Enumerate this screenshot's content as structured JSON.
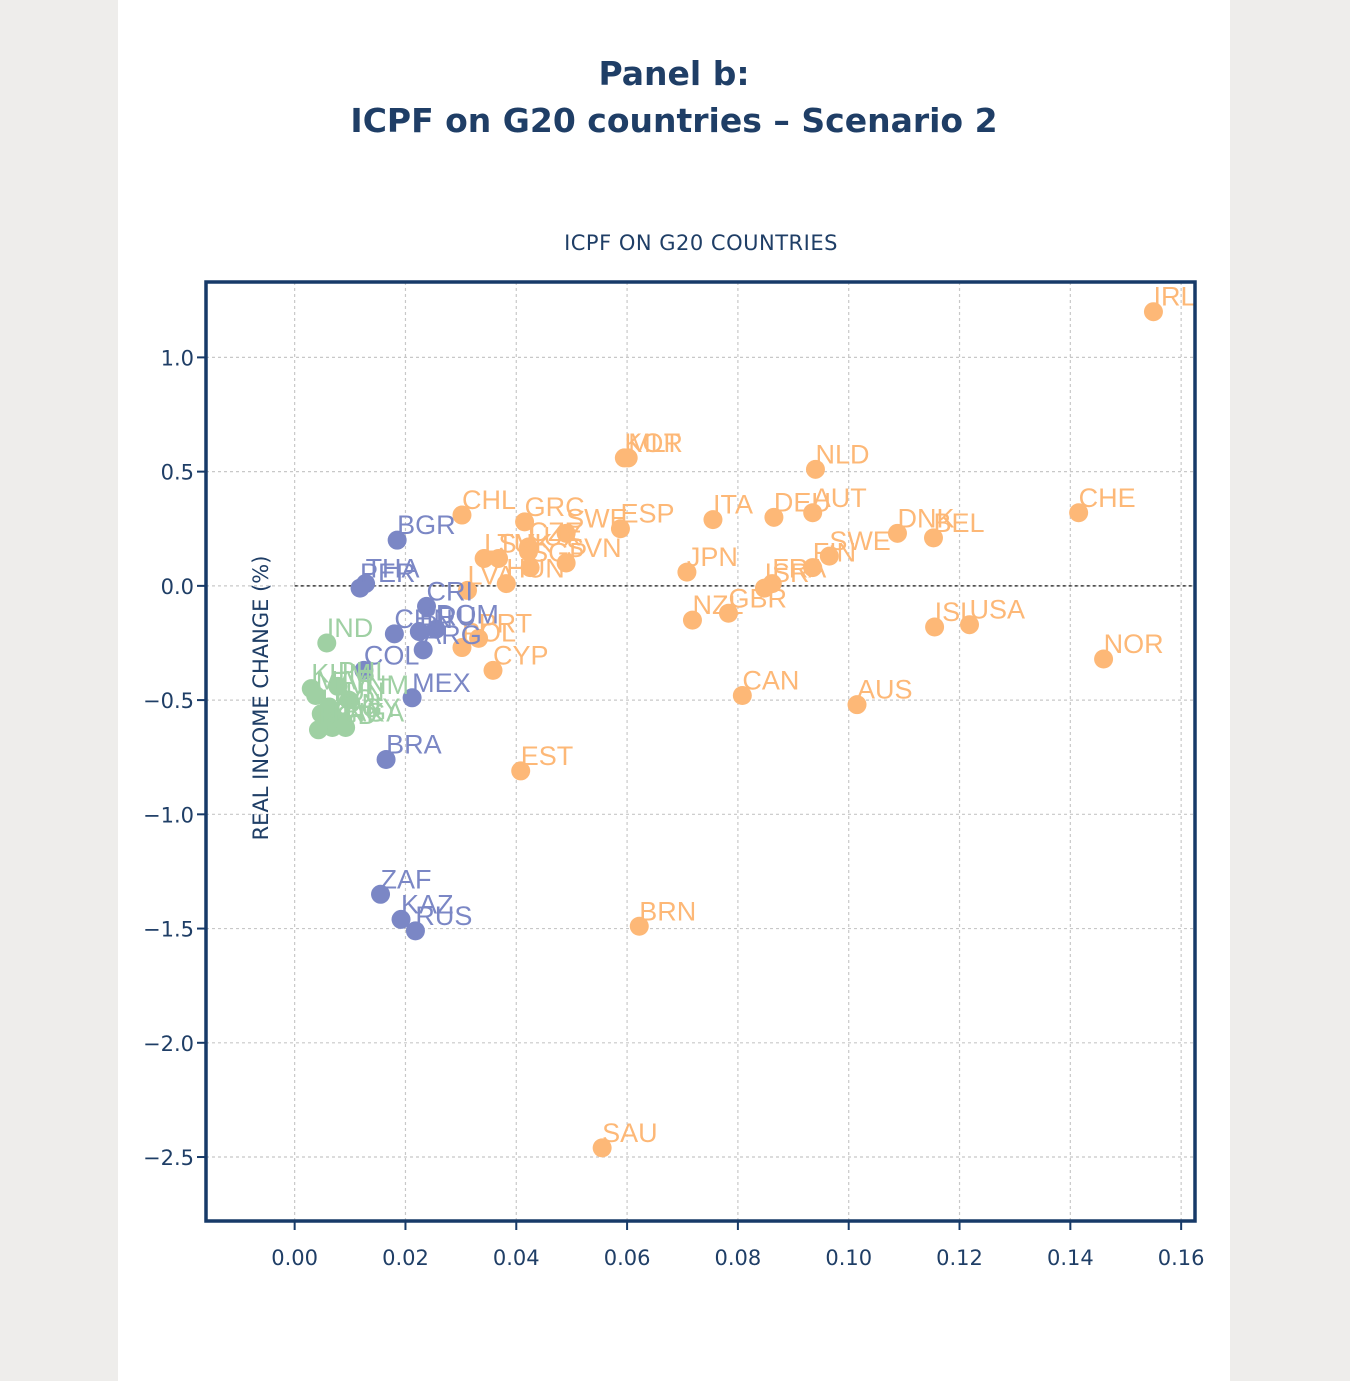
{
  "panel": {
    "title_line1": "Panel b:",
    "title_line2": "ICPF on G20 countries – Scenario 2"
  },
  "colors": {
    "ink": "#1f3e66",
    "axis_frame": "#173a68",
    "high_income": "#fdb877",
    "upper_middle_income": "#7b87c5",
    "lower_income": "#9fd0a3"
  },
  "chart_data": {
    "type": "scatter",
    "title": "ICPF ON G20 COUNTRIES",
    "xlabel": "",
    "ylabel": "REAL INCOME CHANGE (%)",
    "xlim": [
      -0.016,
      0.1625
    ],
    "ylim": [
      -2.78,
      1.33
    ],
    "xticks": [
      "0.00",
      "0.02",
      "0.04",
      "0.06",
      "0.08",
      "0.10",
      "0.12",
      "0.14",
      "0.16"
    ],
    "yticks": [
      "1.0",
      "0.5",
      "0.0",
      "−0.5",
      "−1.0",
      "−1.5",
      "−2.0",
      "−2.5"
    ],
    "grid": true,
    "reference_line_y": 0,
    "series": [
      {
        "color_key": "high_income",
        "points": [
          {
            "label": "IRL",
            "x": 0.155,
            "y": 1.2
          },
          {
            "label": "KOR",
            "x": 0.0595,
            "y": 0.56
          },
          {
            "label": "MLT",
            "x": 0.0602,
            "y": 0.56
          },
          {
            "label": "NLD",
            "x": 0.094,
            "y": 0.51
          },
          {
            "label": "CHL",
            "x": 0.0302,
            "y": 0.31
          },
          {
            "label": "GRC",
            "x": 0.0415,
            "y": 0.28
          },
          {
            "label": "ESP",
            "x": 0.0588,
            "y": 0.25
          },
          {
            "label": "SWE",
            "x": 0.049,
            "y": 0.23
          },
          {
            "label": "ITA",
            "x": 0.0755,
            "y": 0.29
          },
          {
            "label": "DEU",
            "x": 0.0865,
            "y": 0.3
          },
          {
            "label": "AUT",
            "x": 0.0935,
            "y": 0.32
          },
          {
            "label": "CHE",
            "x": 0.1415,
            "y": 0.32
          },
          {
            "label": "DNK",
            "x": 0.1088,
            "y": 0.23
          },
          {
            "label": "BEL",
            "x": 0.1153,
            "y": 0.21
          },
          {
            "label": "SWE",
            "x": 0.0965,
            "y": 0.13
          },
          {
            "label": "FIN",
            "x": 0.0935,
            "y": 0.08
          },
          {
            "label": "LTU",
            "x": 0.0342,
            "y": 0.12
          },
          {
            "label": "SVK",
            "x": 0.0368,
            "y": 0.12
          },
          {
            "label": "CZE",
            "x": 0.0422,
            "y": 0.17
          },
          {
            "label": "LUX",
            "x": 0.0422,
            "y": 0.15
          },
          {
            "label": "SVN",
            "x": 0.049,
            "y": 0.1
          },
          {
            "label": "SGP",
            "x": 0.0425,
            "y": 0.08
          },
          {
            "label": "HUN",
            "x": 0.0382,
            "y": 0.01
          },
          {
            "label": "JPN",
            "x": 0.0708,
            "y": 0.06
          },
          {
            "label": "FRA",
            "x": 0.0862,
            "y": 0.01
          },
          {
            "label": "ISR",
            "x": 0.0848,
            "y": -0.01
          },
          {
            "label": "LVA",
            "x": 0.0312,
            "y": -0.02
          },
          {
            "label": "NZL",
            "x": 0.0718,
            "y": -0.15
          },
          {
            "label": "GBR",
            "x": 0.0783,
            "y": -0.12
          },
          {
            "label": "ISL",
            "x": 0.1155,
            "y": -0.18
          },
          {
            "label": "USA",
            "x": 0.1218,
            "y": -0.17
          },
          {
            "label": "NOR",
            "x": 0.146,
            "y": -0.32
          },
          {
            "label": "POL",
            "x": 0.0302,
            "y": -0.27
          },
          {
            "label": "PRT",
            "x": 0.0332,
            "y": -0.23
          },
          {
            "label": "CYP",
            "x": 0.0358,
            "y": -0.37
          },
          {
            "label": "CAN",
            "x": 0.0808,
            "y": -0.48
          },
          {
            "label": "AUS",
            "x": 0.1015,
            "y": -0.52
          },
          {
            "label": "EST",
            "x": 0.0408,
            "y": -0.81
          },
          {
            "label": "BRN",
            "x": 0.0622,
            "y": -1.49
          },
          {
            "label": "SAU",
            "x": 0.0555,
            "y": -2.46
          }
        ]
      },
      {
        "color_key": "upper_middle_income",
        "points": [
          {
            "label": "BGR",
            "x": 0.0185,
            "y": 0.2
          },
          {
            "label": "THA",
            "x": 0.0128,
            "y": 0.01
          },
          {
            "label": "PER",
            "x": 0.0118,
            "y": -0.01
          },
          {
            "label": "CRI",
            "x": 0.0238,
            "y": -0.09
          },
          {
            "label": "CHN",
            "x": 0.018,
            "y": -0.21
          },
          {
            "label": "BRU",
            "x": 0.0225,
            "y": -0.2
          },
          {
            "label": "DOM",
            "x": 0.0255,
            "y": -0.19
          },
          {
            "label": "ARG",
            "x": 0.0232,
            "y": -0.28
          },
          {
            "label": "COL",
            "x": 0.0125,
            "y": -0.37
          },
          {
            "label": "MEX",
            "x": 0.0212,
            "y": -0.49
          },
          {
            "label": "BRA",
            "x": 0.0165,
            "y": -0.76
          },
          {
            "label": "ZAF",
            "x": 0.0155,
            "y": -1.35
          },
          {
            "label": "KAZ",
            "x": 0.0192,
            "y": -1.46
          },
          {
            "label": "RUS",
            "x": 0.0218,
            "y": -1.51
          }
        ]
      },
      {
        "color_key": "lower_income",
        "points": [
          {
            "label": "IND",
            "x": 0.0058,
            "y": -0.25
          },
          {
            "label": "KHM",
            "x": 0.003,
            "y": -0.45
          },
          {
            "label": "PHL",
            "x": 0.0078,
            "y": -0.44
          },
          {
            "label": "VNM",
            "x": 0.0098,
            "y": -0.5
          },
          {
            "label": "TUN",
            "x": 0.0062,
            "y": -0.53
          },
          {
            "label": "MAR",
            "x": 0.0038,
            "y": -0.48
          },
          {
            "label": "IDN",
            "x": 0.0072,
            "y": -0.58
          },
          {
            "label": "EGY",
            "x": 0.0088,
            "y": -0.6
          },
          {
            "label": "LAO",
            "x": 0.0048,
            "y": -0.56
          },
          {
            "label": "PAK",
            "x": 0.0068,
            "y": -0.62
          },
          {
            "label": "BGD",
            "x": 0.0043,
            "y": -0.63
          },
          {
            "label": "NGA",
            "x": 0.0092,
            "y": -0.62
          }
        ]
      }
    ]
  }
}
